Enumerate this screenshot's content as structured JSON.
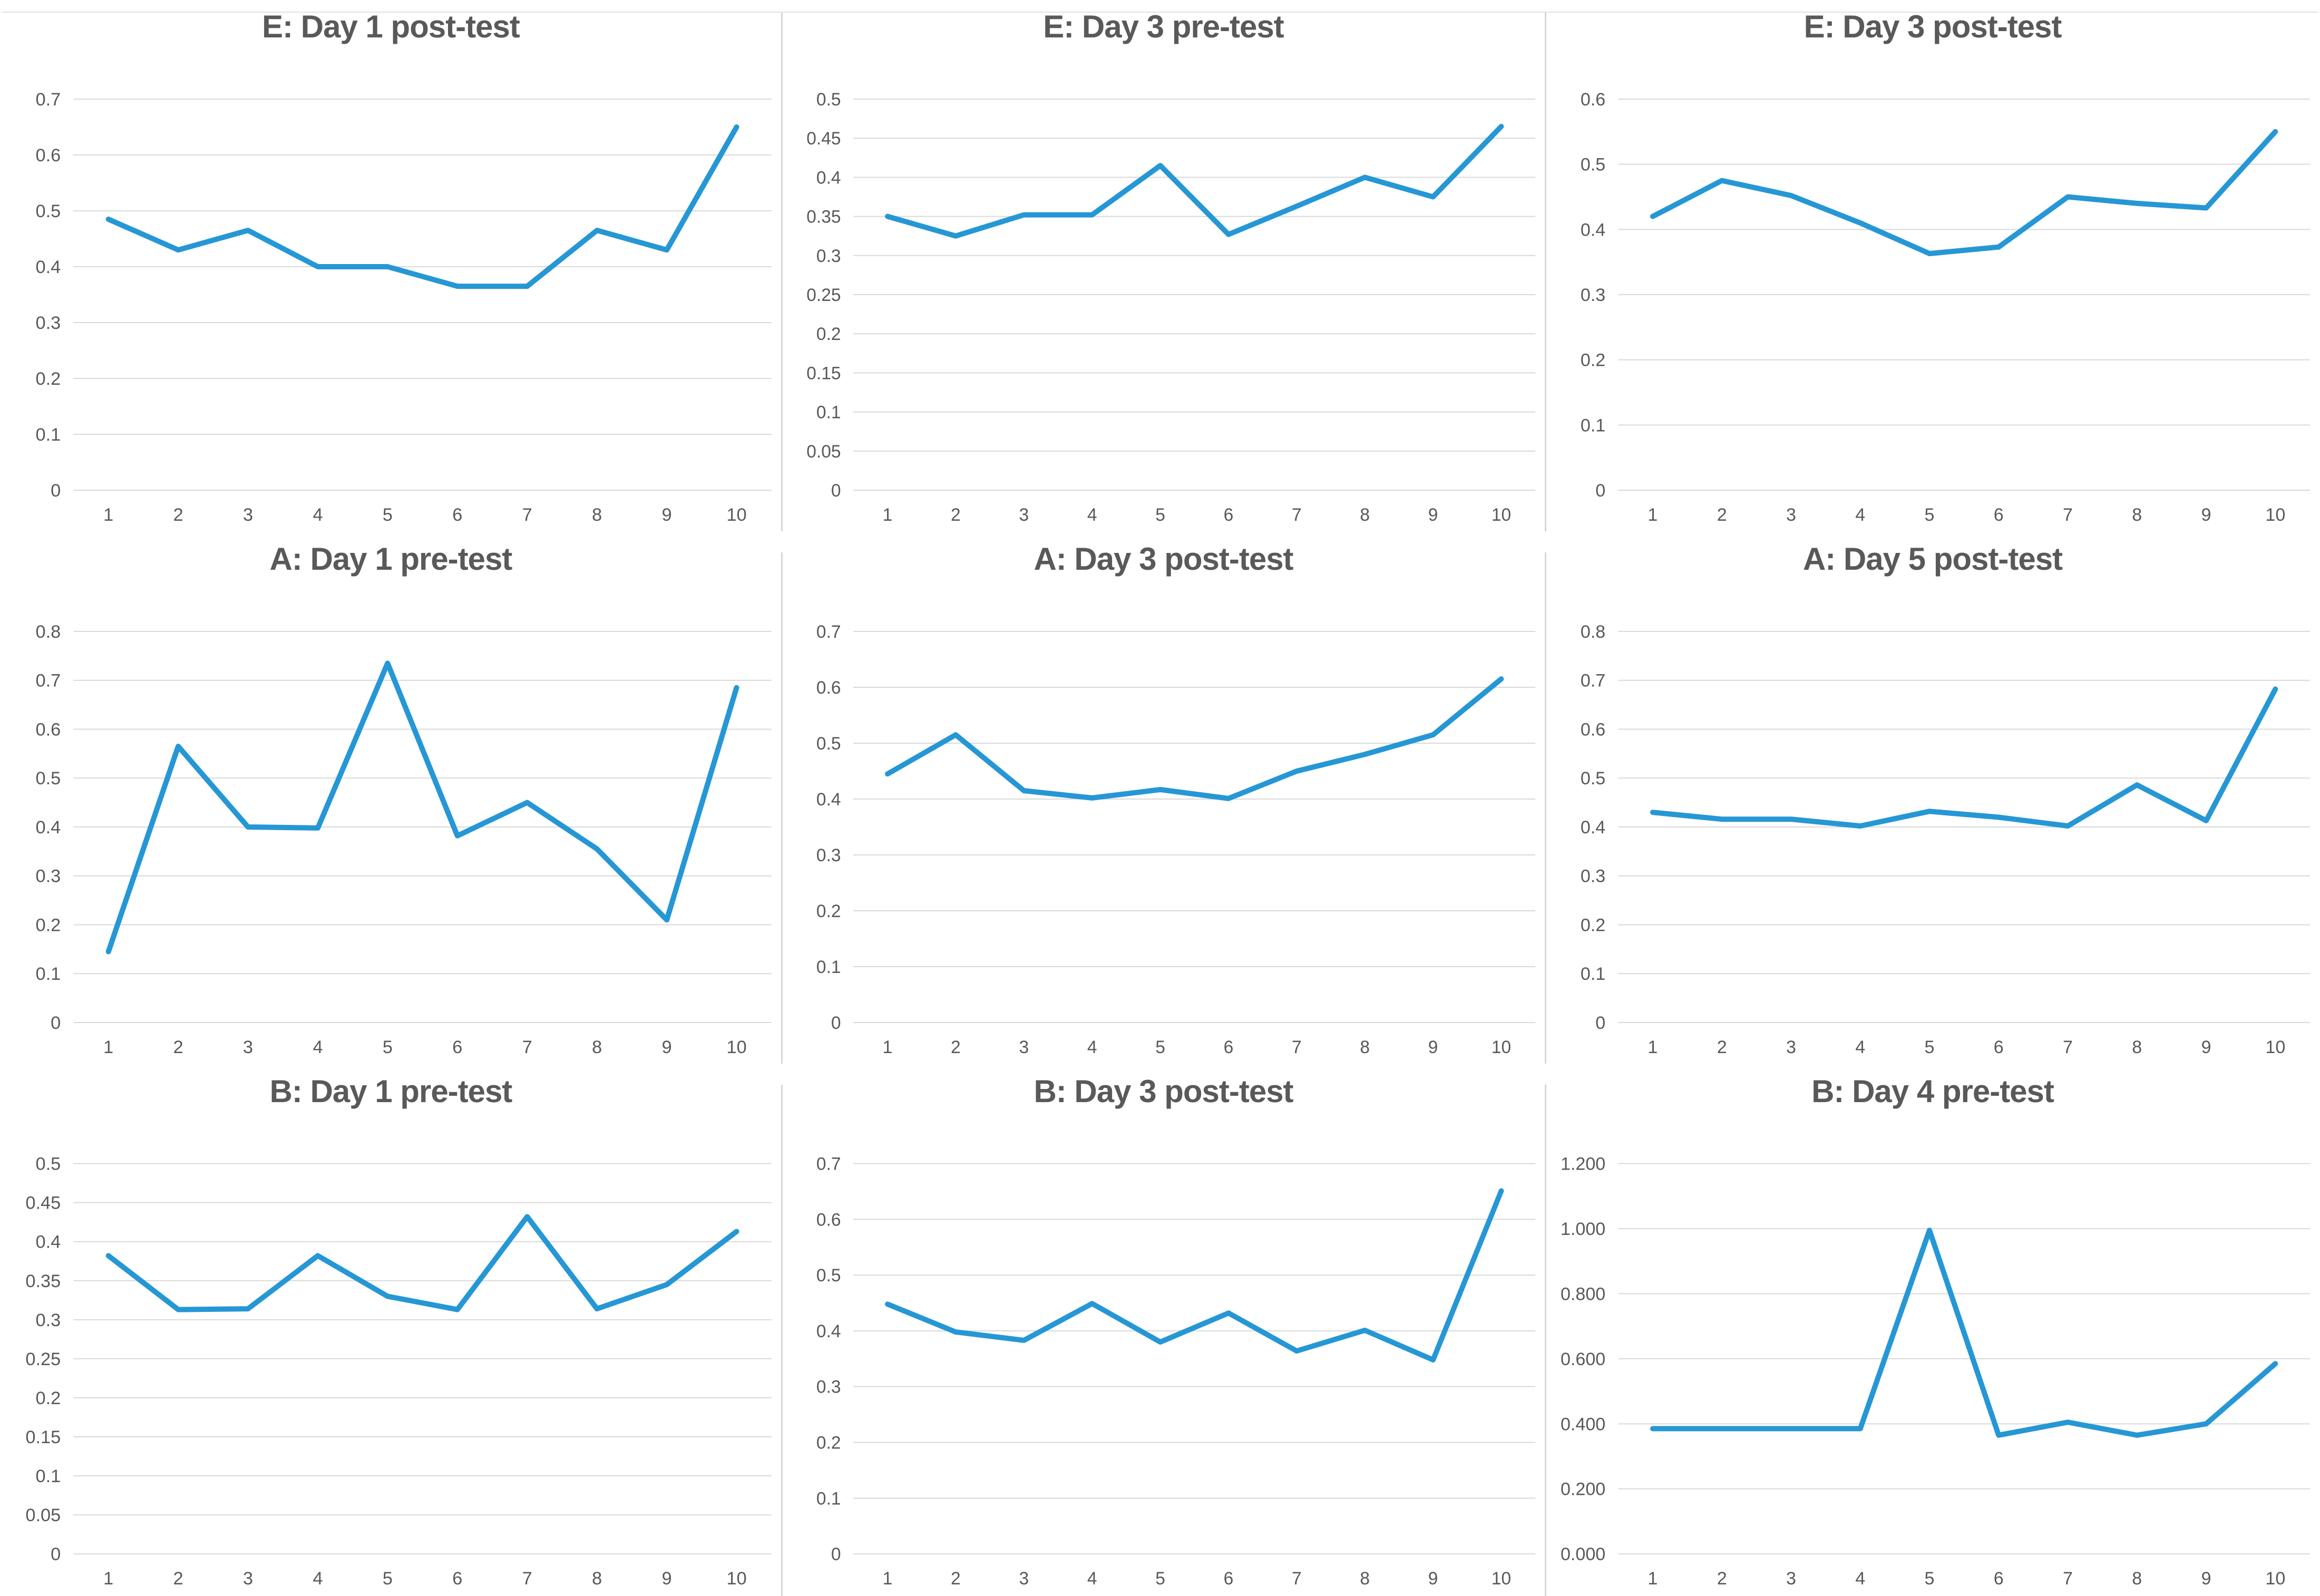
{
  "style": {
    "line_color": "#2697D5",
    "grid_color": "#D9D9D9",
    "text_color": "#595959",
    "divider_color": "#D6D6D6",
    "background": "#FFFFFF"
  },
  "chart_data": [
    {
      "type": "line",
      "title": "E: Day 1 post-test",
      "categories": [
        "1",
        "2",
        "3",
        "4",
        "5",
        "6",
        "7",
        "8",
        "9",
        "10"
      ],
      "values": [
        0.485,
        0.43,
        0.465,
        0.4,
        0.4,
        0.365,
        0.365,
        0.465,
        0.43,
        0.65
      ],
      "ylim": [
        0,
        0.7
      ],
      "ytick_values": [
        0.7,
        0.6,
        0.5,
        0.4,
        0.3,
        0.2,
        0.1,
        0
      ],
      "ytick_labels": [
        "0.7",
        "0.6",
        "0.5",
        "0.4",
        "0.3",
        "0.2",
        "0.1",
        "0"
      ],
      "xlabel": "",
      "ylabel": "",
      "grid": true,
      "legend_position": "none"
    },
    {
      "type": "line",
      "title": "E: Day 3 pre-test",
      "categories": [
        "1",
        "2",
        "3",
        "4",
        "5",
        "6",
        "7",
        "8",
        "9",
        "10"
      ],
      "values": [
        0.35,
        0.325,
        0.352,
        0.352,
        0.415,
        0.327,
        0.363,
        0.4,
        0.375,
        0.465
      ],
      "ylim": [
        0,
        0.5
      ],
      "ytick_values": [
        0.5,
        0.45,
        0.4,
        0.35,
        0.3,
        0.25,
        0.2,
        0.15,
        0.1,
        0.05,
        0
      ],
      "ytick_labels": [
        "0.5",
        "0.45",
        "0.4",
        "0.35",
        "0.3",
        "0.25",
        "0.2",
        "0.15",
        "0.1",
        "0.05",
        "0"
      ],
      "xlabel": "",
      "ylabel": "",
      "grid": true,
      "legend_position": "none"
    },
    {
      "type": "line",
      "title": "E: Day 3 post-test",
      "categories": [
        "1",
        "2",
        "3",
        "4",
        "5",
        "6",
        "7",
        "8",
        "9",
        "10"
      ],
      "values": [
        0.42,
        0.475,
        0.452,
        0.41,
        0.363,
        0.373,
        0.45,
        0.44,
        0.433,
        0.55
      ],
      "ylim": [
        0,
        0.6
      ],
      "ytick_values": [
        0.6,
        0.5,
        0.4,
        0.3,
        0.2,
        0.1,
        0
      ],
      "ytick_labels": [
        "0.6",
        "0.5",
        "0.4",
        "0.3",
        "0.2",
        "0.1",
        "0"
      ],
      "xlabel": "",
      "ylabel": "",
      "grid": true,
      "legend_position": "none"
    },
    {
      "type": "line",
      "title": "A: Day 1 pre-test",
      "categories": [
        "1",
        "2",
        "3",
        "4",
        "5",
        "6",
        "7",
        "8",
        "9",
        "10"
      ],
      "values": [
        0.145,
        0.565,
        0.4,
        0.398,
        0.735,
        0.382,
        0.45,
        0.355,
        0.21,
        0.685
      ],
      "ylim": [
        0,
        0.8
      ],
      "ytick_values": [
        0.8,
        0.7,
        0.6,
        0.5,
        0.4,
        0.3,
        0.2,
        0.1,
        0
      ],
      "ytick_labels": [
        "0.8",
        "0.7",
        "0.6",
        "0.5",
        "0.4",
        "0.3",
        "0.2",
        "0.1",
        "0"
      ],
      "xlabel": "",
      "ylabel": "",
      "grid": true,
      "legend_position": "none"
    },
    {
      "type": "line",
      "title": "A: Day 3 post-test",
      "categories": [
        "1",
        "2",
        "3",
        "4",
        "5",
        "6",
        "7",
        "8",
        "9",
        "10"
      ],
      "values": [
        0.445,
        0.515,
        0.415,
        0.402,
        0.417,
        0.401,
        0.45,
        0.48,
        0.515,
        0.615
      ],
      "ylim": [
        0,
        0.7
      ],
      "ytick_values": [
        0.7,
        0.6,
        0.5,
        0.4,
        0.3,
        0.2,
        0.1,
        0
      ],
      "ytick_labels": [
        "0.7",
        "0.6",
        "0.5",
        "0.4",
        "0.3",
        "0.2",
        "0.1",
        "0"
      ],
      "xlabel": "",
      "ylabel": "",
      "grid": true,
      "legend_position": "none"
    },
    {
      "type": "line",
      "title": "A: Day 5 post-test",
      "categories": [
        "1",
        "2",
        "3",
        "4",
        "5",
        "6",
        "7",
        "8",
        "9",
        "10"
      ],
      "values": [
        0.43,
        0.416,
        0.416,
        0.402,
        0.432,
        0.42,
        0.402,
        0.486,
        0.413,
        0.682
      ],
      "ylim": [
        0,
        0.8
      ],
      "ytick_values": [
        0.8,
        0.7,
        0.6,
        0.5,
        0.4,
        0.3,
        0.2,
        0.1,
        0
      ],
      "ytick_labels": [
        "0.8",
        "0.7",
        "0.6",
        "0.5",
        "0.4",
        "0.3",
        "0.2",
        "0.1",
        "0"
      ],
      "xlabel": "",
      "ylabel": "",
      "grid": true,
      "legend_position": "none"
    },
    {
      "type": "line",
      "title": "B: Day 1 pre-test",
      "categories": [
        "1",
        "2",
        "3",
        "4",
        "5",
        "6",
        "7",
        "8",
        "9",
        "10"
      ],
      "values": [
        0.382,
        0.313,
        0.314,
        0.382,
        0.33,
        0.313,
        0.432,
        0.314,
        0.345,
        0.413
      ],
      "ylim": [
        0,
        0.5
      ],
      "ytick_values": [
        0.5,
        0.45,
        0.4,
        0.35,
        0.3,
        0.25,
        0.2,
        0.15,
        0.1,
        0.05,
        0
      ],
      "ytick_labels": [
        "0.5",
        "0.45",
        "0.4",
        "0.35",
        "0.3",
        "0.25",
        "0.2",
        "0.15",
        "0.1",
        "0.05",
        "0"
      ],
      "xlabel": "",
      "ylabel": "",
      "grid": true,
      "legend_position": "none"
    },
    {
      "type": "line",
      "title": "B: Day 3 post-test",
      "categories": [
        "1",
        "2",
        "3",
        "4",
        "5",
        "6",
        "7",
        "8",
        "9",
        "10"
      ],
      "values": [
        0.448,
        0.398,
        0.383,
        0.449,
        0.38,
        0.432,
        0.364,
        0.401,
        0.348,
        0.651
      ],
      "ylim": [
        0,
        0.7
      ],
      "ytick_values": [
        0.7,
        0.6,
        0.5,
        0.4,
        0.3,
        0.2,
        0.1,
        0
      ],
      "ytick_labels": [
        "0.7",
        "0.6",
        "0.5",
        "0.4",
        "0.3",
        "0.2",
        "0.1",
        "0"
      ],
      "xlabel": "",
      "ylabel": "",
      "grid": true,
      "legend_position": "none"
    },
    {
      "type": "line",
      "title": "B: Day 4 pre-test",
      "categories": [
        "1",
        "2",
        "3",
        "4",
        "5",
        "6",
        "7",
        "8",
        "9",
        "10"
      ],
      "values": [
        0.385,
        0.385,
        0.385,
        0.385,
        0.995,
        0.365,
        0.405,
        0.365,
        0.4,
        0.585
      ],
      "ylim": [
        0,
        1.2
      ],
      "ytick_values": [
        1.2,
        1.0,
        0.8,
        0.6,
        0.4,
        0.2,
        0
      ],
      "ytick_labels": [
        "1.200",
        "1.000",
        "0.800",
        "0.600",
        "0.400",
        "0.200",
        "0.000"
      ],
      "xlabel": "",
      "ylabel": "",
      "grid": true,
      "legend_position": "none"
    }
  ]
}
